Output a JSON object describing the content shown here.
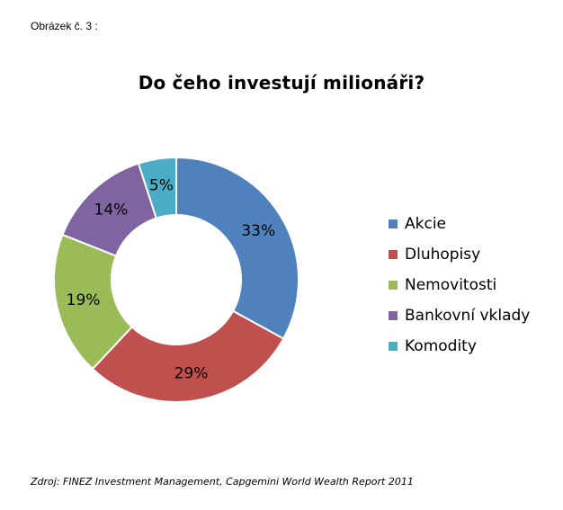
{
  "caption": "Obrázek č. 3 :",
  "source": "Zdroj: FINEZ Investment Management, Capgemini World Wealth Report 2011",
  "chart_data": {
    "type": "pie",
    "variant": "doughnut",
    "title": "Do čeho investují milionáři?",
    "legend_position": "right",
    "categories": [
      "Akcie",
      "Dluhopisy",
      "Nemovitosti",
      "Bankovní vklady",
      "Komodity"
    ],
    "values": [
      33,
      29,
      19,
      14,
      5
    ],
    "labels": [
      "33%",
      "29%",
      "19%",
      "14%",
      "5%"
    ],
    "colors": [
      "#4F81BD",
      "#C0504D",
      "#9BBB59",
      "#8064A2",
      "#4BACC6"
    ]
  }
}
